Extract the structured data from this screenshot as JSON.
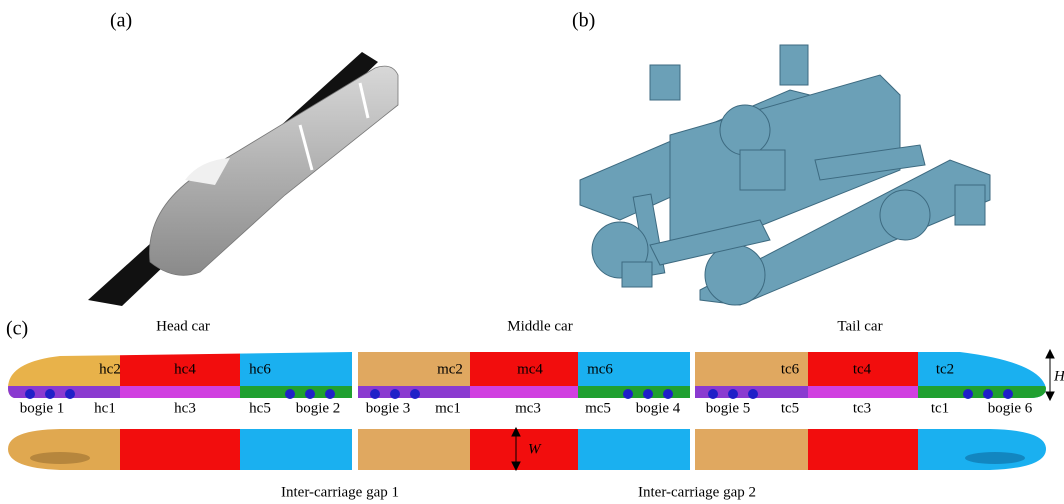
{
  "panels": {
    "a": "(a)",
    "b": "(b)",
    "c": "(c)"
  },
  "car_labels": [
    "Head car",
    "Middle car",
    "Tail car"
  ],
  "upper_labels": [
    "hc2",
    "hc4",
    "hc6",
    "mc2",
    "mc4",
    "mc6",
    "tc6",
    "tc4",
    "tc2"
  ],
  "lower_labels": [
    "bogie 1",
    "hc1",
    "hc3",
    "hc5",
    "bogie 2",
    "bogie 3",
    "mc1",
    "mc3",
    "mc5",
    "bogie 4",
    "bogie 5",
    "tc5",
    "tc3",
    "tc1",
    "bogie 6"
  ],
  "dimensions": {
    "height": "H",
    "width": "W"
  },
  "gap_labels": [
    "Inter-carriage gap 1",
    "Inter-carriage gap 2"
  ]
}
